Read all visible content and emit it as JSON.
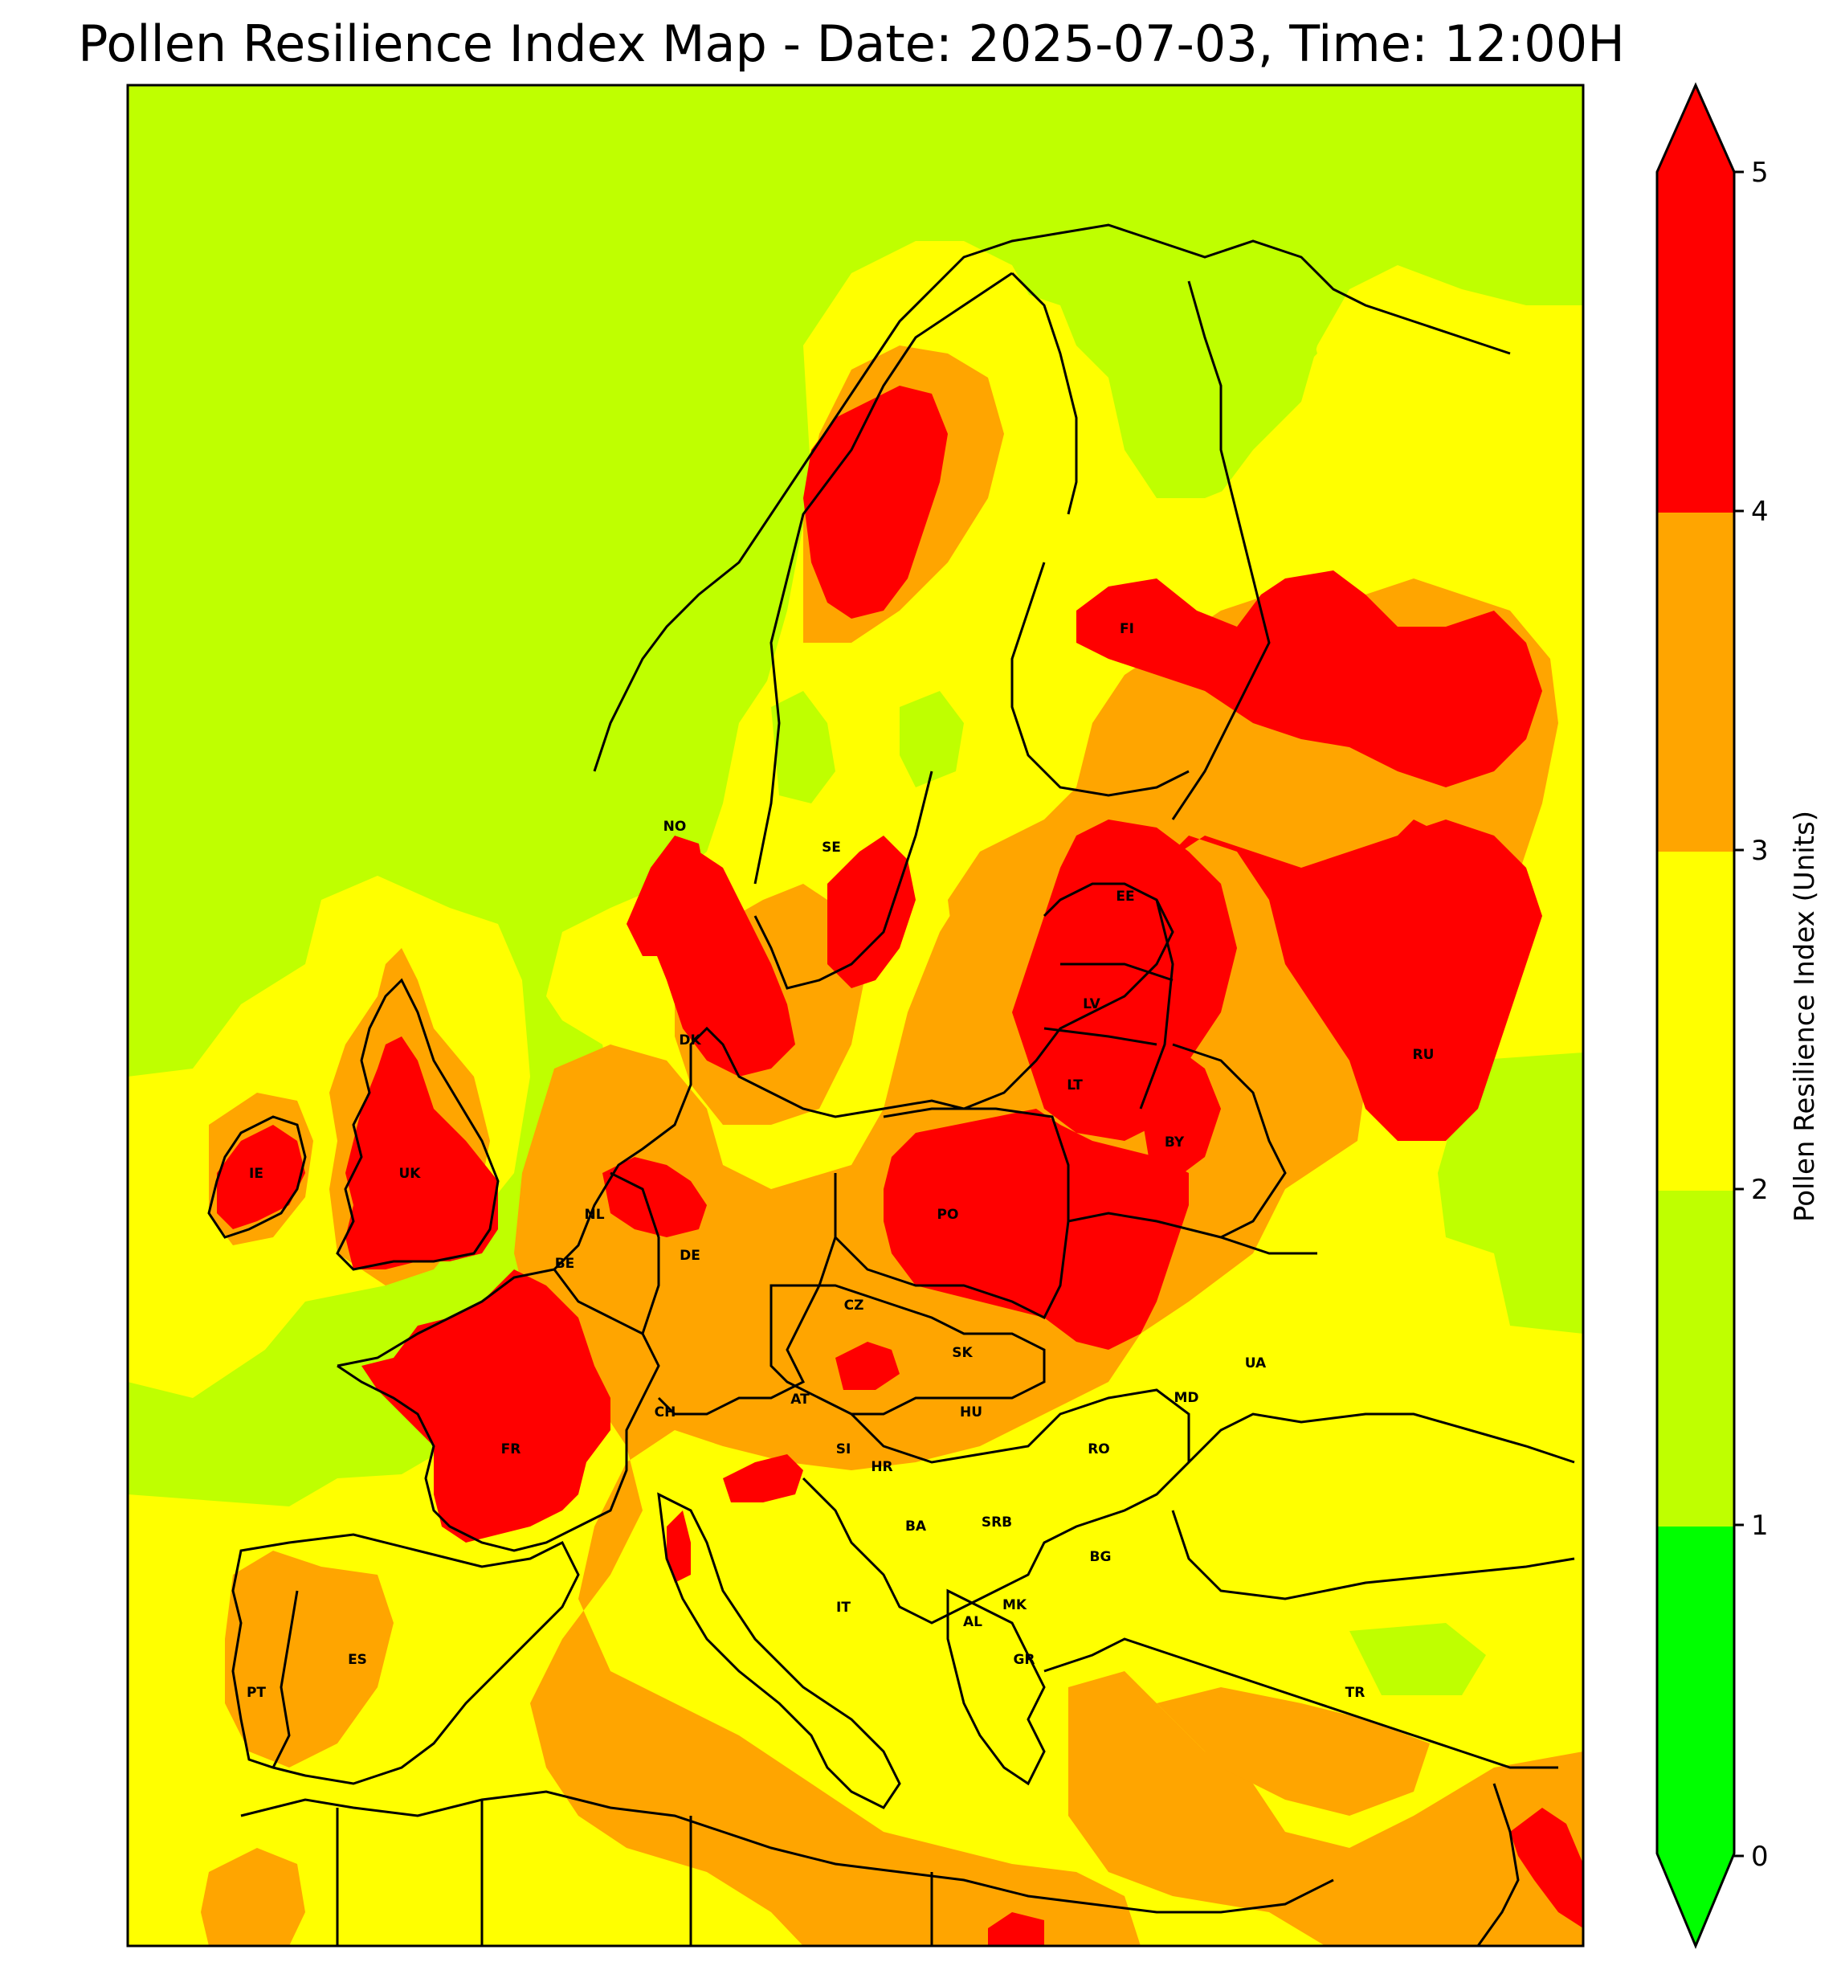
{
  "title": "Pollen Resilience Index Map - Date: 2025-07-03, Time: 12:00H",
  "colorbar": {
    "label": "Pollen Resilience Index (Units)",
    "ticks": [
      "0",
      "1",
      "2",
      "3",
      "4",
      "5"
    ],
    "bands": [
      {
        "from": 0,
        "to": 1,
        "color": "#00ff00"
      },
      {
        "from": 1,
        "to": 2,
        "color": "#bfff00"
      },
      {
        "from": 2,
        "to": 3,
        "color": "#ffff00"
      },
      {
        "from": 3,
        "to": 4,
        "color": "#ffa500"
      },
      {
        "from": 4,
        "to": 5,
        "color": "#ff0000"
      }
    ],
    "extend": "both"
  },
  "map": {
    "background_level_color": "#bfff00",
    "country_labels": {
      "NO": "NO",
      "SE": "SE",
      "FI": "FI",
      "EE": "EE",
      "LV": "LV",
      "LT": "LT",
      "RU": "RU",
      "BY": "BY",
      "DK": "DK",
      "IE": "IE",
      "UK": "UK",
      "NL": "NL",
      "BE": "BE",
      "DE": "DE",
      "PO": "PO",
      "CZ": "CZ",
      "SK": "SK",
      "UA": "UA",
      "FR": "FR",
      "CH": "CH",
      "AT": "AT",
      "HU": "HU",
      "MD": "MD",
      "RO": "RO",
      "SI": "SI",
      "HR": "HR",
      "BA": "BA",
      "SRB": "SRB",
      "BG": "BG",
      "MK": "MK",
      "AL": "AL",
      "IT": "IT",
      "GR": "GR",
      "ES": "ES",
      "PT": "PT",
      "TR": "TR"
    }
  }
}
